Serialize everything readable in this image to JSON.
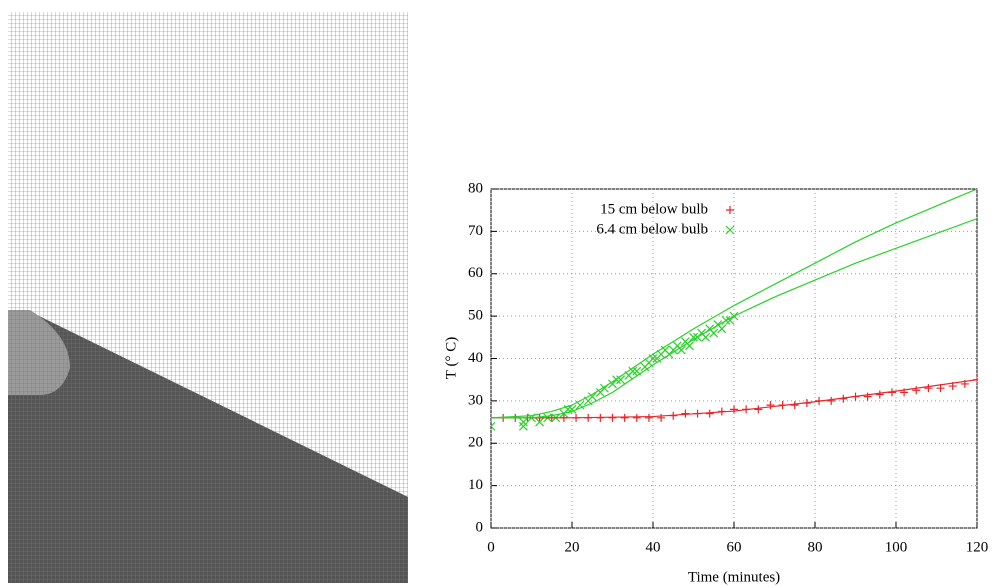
{
  "chart_data": {
    "type": "scatter",
    "x_label": "Time (minutes)",
    "y_label": "T (° C)",
    "xlim": [
      0,
      120
    ],
    "xticks": [
      0,
      20,
      40,
      60,
      80,
      100,
      120
    ],
    "ylim": [
      0,
      80
    ],
    "yticks": [
      0,
      10,
      20,
      30,
      40,
      50,
      60,
      70,
      80
    ],
    "grid": true,
    "legend": "top",
    "series": [
      {
        "name": "15 cm below bulb",
        "type": "scatter",
        "marker": "plus",
        "color": "#e8262a",
        "x": [
          0,
          3,
          6,
          9,
          12,
          15,
          18,
          21,
          24,
          27,
          30,
          33,
          36,
          39,
          42,
          45,
          48,
          51,
          54,
          57,
          60,
          63,
          66,
          69,
          72,
          75,
          78,
          81,
          84,
          87,
          90,
          93,
          96,
          99,
          102,
          105,
          108,
          111,
          114,
          117,
          120
        ],
        "values": [
          26,
          26,
          26,
          26,
          26,
          26,
          26,
          26,
          26,
          26,
          26,
          26,
          26,
          26,
          26,
          26.5,
          27,
          27,
          27,
          27.5,
          28,
          28,
          28,
          29,
          29,
          29,
          29.5,
          30,
          30,
          30.5,
          31,
          31,
          31.5,
          32,
          32,
          32.5,
          33,
          33,
          33.5,
          34,
          35
        ]
      },
      {
        "name": "6.4 cm below bulb",
        "type": "scatter",
        "marker": "cross",
        "color": "#2ad02a",
        "x": [
          0,
          8,
          8,
          10,
          12,
          14,
          16,
          18,
          19,
          20,
          22,
          24,
          25,
          27,
          28,
          30,
          31,
          32,
          34,
          35,
          36,
          38,
          39,
          40,
          41,
          42,
          43,
          44,
          45,
          46,
          47,
          48,
          49,
          50,
          51,
          52,
          53,
          54,
          55,
          56,
          57,
          58,
          59,
          60
        ],
        "values": [
          24,
          24,
          25,
          26,
          25,
          26,
          26,
          27,
          28,
          28,
          29,
          30,
          31,
          32,
          33,
          34,
          35,
          35,
          36,
          37,
          37,
          38,
          39,
          40,
          40,
          41,
          42,
          41,
          42,
          43,
          42,
          44,
          43,
          45,
          45,
          46,
          45,
          47,
          46,
          48,
          47,
          49,
          49,
          50
        ]
      },
      {
        "type": "line",
        "color": "#e8262a",
        "x": [
          0,
          20,
          40,
          60,
          80,
          100,
          120
        ],
        "values": [
          26,
          26,
          26.3,
          27.6,
          29.8,
          32.3,
          35
        ]
      },
      {
        "type": "line",
        "color": "#2ad02a",
        "x": [
          0,
          10,
          15,
          20,
          25,
          30,
          40,
          50,
          60,
          70,
          80,
          90,
          100,
          110,
          120
        ],
        "values": [
          26,
          26.5,
          27.5,
          29,
          31.5,
          34.5,
          41,
          47,
          52.5,
          57.5,
          62.5,
          67.5,
          72,
          76,
          80
        ]
      },
      {
        "type": "line",
        "color": "#2ad02a",
        "x": [
          0,
          10,
          15,
          20,
          25,
          30,
          40,
          50,
          60,
          70,
          80,
          90,
          100,
          110,
          120
        ],
        "values": [
          26,
          26,
          26.5,
          27.5,
          29.5,
          32,
          38.5,
          44.5,
          50,
          54.5,
          58.5,
          62.5,
          66,
          69.5,
          73
        ]
      }
    ]
  }
}
